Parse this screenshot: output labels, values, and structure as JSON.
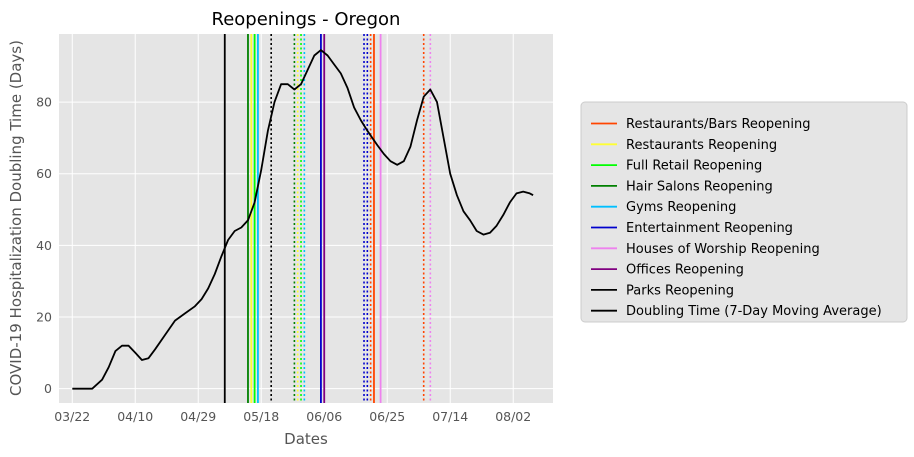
{
  "chart_data": {
    "type": "line",
    "title": "Reopenings - Oregon",
    "xlabel": "Dates",
    "ylabel": "COVID-19 Hospitalization Doubling Time (Days)",
    "xlim": [
      "2020-03-18",
      "2020-08-14"
    ],
    "ylim": [
      -4,
      99
    ],
    "x_ticks": [
      {
        "date": "2020-03-22",
        "label": "03/22"
      },
      {
        "date": "2020-04-10",
        "label": "04/10"
      },
      {
        "date": "2020-04-29",
        "label": "04/29"
      },
      {
        "date": "2020-05-18",
        "label": "05/18"
      },
      {
        "date": "2020-06-06",
        "label": "06/06"
      },
      {
        "date": "2020-06-25",
        "label": "06/25"
      },
      {
        "date": "2020-07-14",
        "label": "07/14"
      },
      {
        "date": "2020-08-02",
        "label": "08/02"
      }
    ],
    "y_ticks": [
      0,
      20,
      40,
      60,
      80
    ],
    "grid": true,
    "legend_position": "right",
    "series": [
      {
        "name": "Doubling Time (7-Day Moving Average)",
        "color": "#000000",
        "points": [
          [
            "2020-03-22",
            0
          ],
          [
            "2020-03-25",
            0
          ],
          [
            "2020-03-28",
            0
          ],
          [
            "2020-03-31",
            2.5
          ],
          [
            "2020-04-02",
            6
          ],
          [
            "2020-04-04",
            10.5
          ],
          [
            "2020-04-06",
            12
          ],
          [
            "2020-04-08",
            12
          ],
          [
            "2020-04-10",
            10
          ],
          [
            "2020-04-12",
            8
          ],
          [
            "2020-04-14",
            8.5
          ],
          [
            "2020-04-16",
            11
          ],
          [
            "2020-04-19",
            15
          ],
          [
            "2020-04-22",
            19
          ],
          [
            "2020-04-25",
            21
          ],
          [
            "2020-04-28",
            23
          ],
          [
            "2020-04-30",
            25
          ],
          [
            "2020-05-02",
            28
          ],
          [
            "2020-05-04",
            32
          ],
          [
            "2020-05-06",
            37
          ],
          [
            "2020-05-08",
            41.5
          ],
          [
            "2020-05-10",
            44
          ],
          [
            "2020-05-12",
            45
          ],
          [
            "2020-05-14",
            47
          ],
          [
            "2020-05-16",
            52
          ],
          [
            "2020-05-18",
            61
          ],
          [
            "2020-05-20",
            72
          ],
          [
            "2020-05-22",
            80
          ],
          [
            "2020-05-24",
            85
          ],
          [
            "2020-05-26",
            85
          ],
          [
            "2020-05-28",
            83.5
          ],
          [
            "2020-05-30",
            85
          ],
          [
            "2020-06-01",
            89
          ],
          [
            "2020-06-03",
            93
          ],
          [
            "2020-06-05",
            94.5
          ],
          [
            "2020-06-07",
            93
          ],
          [
            "2020-06-09",
            90.5
          ],
          [
            "2020-06-11",
            88
          ],
          [
            "2020-06-13",
            84
          ],
          [
            "2020-06-15",
            78.5
          ],
          [
            "2020-06-17",
            75
          ],
          [
            "2020-06-19",
            72
          ],
          [
            "2020-06-22",
            68
          ],
          [
            "2020-06-24",
            65.5
          ],
          [
            "2020-06-26",
            63.5
          ],
          [
            "2020-06-28",
            62.5
          ],
          [
            "2020-06-30",
            63.5
          ],
          [
            "2020-07-02",
            67.5
          ],
          [
            "2020-07-04",
            75
          ],
          [
            "2020-07-06",
            81.5
          ],
          [
            "2020-07-08",
            83.5
          ],
          [
            "2020-07-10",
            80
          ],
          [
            "2020-07-12",
            70
          ],
          [
            "2020-07-14",
            60
          ],
          [
            "2020-07-16",
            54
          ],
          [
            "2020-07-18",
            49.5
          ],
          [
            "2020-07-20",
            47
          ],
          [
            "2020-07-22",
            44
          ],
          [
            "2020-07-24",
            43
          ],
          [
            "2020-07-26",
            43.5
          ],
          [
            "2020-07-28",
            45.5
          ],
          [
            "2020-07-30",
            48.5
          ],
          [
            "2020-08-01",
            52
          ],
          [
            "2020-08-03",
            54.5
          ],
          [
            "2020-08-05",
            55
          ],
          [
            "2020-08-07",
            54.5
          ],
          [
            "2020-08-08",
            54
          ]
        ]
      }
    ],
    "reopenings": [
      {
        "name": "Restaurants/Bars Reopening",
        "color": "#ff4500",
        "solid": [
          "2020-06-21"
        ],
        "dotted": [
          "2020-06-20",
          "2020-07-06"
        ]
      },
      {
        "name": "Restaurants Reopening",
        "color": "#ffff33",
        "solid": [
          "2020-05-15"
        ],
        "dotted": [
          "2020-05-29"
        ]
      },
      {
        "name": "Full Retail Reopening",
        "color": "#00ff00",
        "solid": [
          "2020-05-16"
        ],
        "dotted": [
          "2020-05-30"
        ]
      },
      {
        "name": "Hair Salons Reopening",
        "color": "#008000",
        "solid": [
          "2020-05-14"
        ],
        "dotted": [
          "2020-05-28"
        ]
      },
      {
        "name": "Gyms Reopening",
        "color": "#00bfff",
        "solid": [
          "2020-05-17"
        ],
        "dotted": [
          "2020-05-31"
        ]
      },
      {
        "name": "Entertainment Reopening",
        "color": "#0000cd",
        "solid": [
          "2020-06-05"
        ],
        "dotted": [
          "2020-06-18",
          "2020-06-19"
        ]
      },
      {
        "name": "Houses of Worship Reopening",
        "color": "#ee82ee",
        "solid": [
          "2020-06-23"
        ],
        "dotted": [
          "2020-07-08"
        ]
      },
      {
        "name": "Offices Reopening",
        "color": "#800080",
        "solid": [
          "2020-06-06"
        ],
        "dotted": []
      },
      {
        "name": "Parks Reopening",
        "color": "#000000",
        "solid": [
          "2020-05-07"
        ],
        "dotted": [
          "2020-05-21"
        ]
      }
    ],
    "legend": [
      {
        "label": "Restaurants/Bars Reopening",
        "color": "#ff4500"
      },
      {
        "label": "Restaurants Reopening",
        "color": "#ffff33"
      },
      {
        "label": "Full Retail Reopening",
        "color": "#00ff00"
      },
      {
        "label": "Hair Salons Reopening",
        "color": "#008000"
      },
      {
        "label": "Gyms Reopening",
        "color": "#00bfff"
      },
      {
        "label": "Entertainment Reopening",
        "color": "#0000cd"
      },
      {
        "label": "Houses of Worship Reopening",
        "color": "#ee82ee"
      },
      {
        "label": "Offices Reopening",
        "color": "#800080"
      },
      {
        "label": "Parks Reopening",
        "color": "#000000"
      },
      {
        "label": "Doubling Time (7-Day Moving Average)",
        "color": "#000000"
      }
    ],
    "colors": {
      "plot_background": "#e5e5e5",
      "grid": "#ffffff",
      "text": "#555555"
    }
  }
}
